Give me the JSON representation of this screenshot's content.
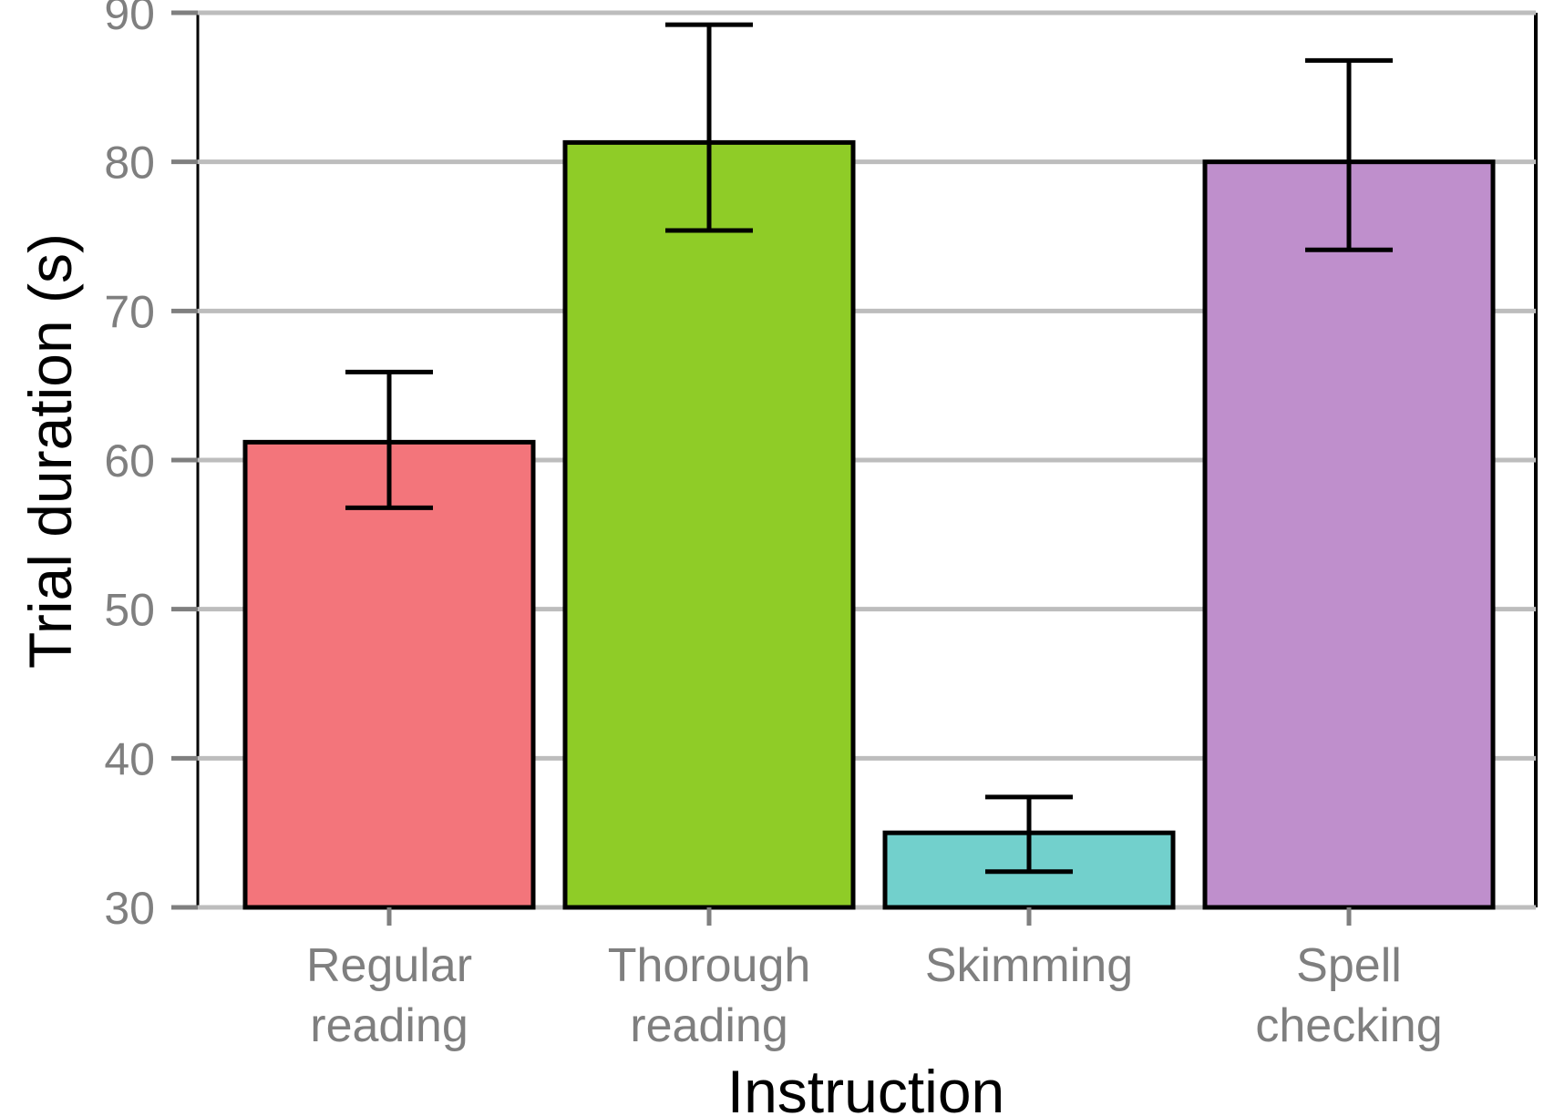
{
  "chart_data": {
    "type": "bar",
    "categories": [
      [
        "Regular",
        "reading"
      ],
      [
        "Thorough",
        "reading"
      ],
      [
        "Skimming"
      ],
      [
        "Spell",
        "checking"
      ]
    ],
    "values": [
      61.2,
      81.3,
      35.0,
      80.0
    ],
    "error_low": [
      56.8,
      75.4,
      32.4,
      74.1
    ],
    "error_high": [
      65.9,
      89.2,
      37.4,
      86.8
    ],
    "colors": [
      "#f3757b",
      "#8fcc27",
      "#72d0cc",
      "#bf8fcc"
    ],
    "xlabel": "Instruction",
    "ylabel": "Trial duration (s)",
    "ylim": [
      30,
      90
    ],
    "yticks": [
      30,
      40,
      50,
      60,
      70,
      80,
      90
    ],
    "grid": "horizontal",
    "legend": "none"
  }
}
